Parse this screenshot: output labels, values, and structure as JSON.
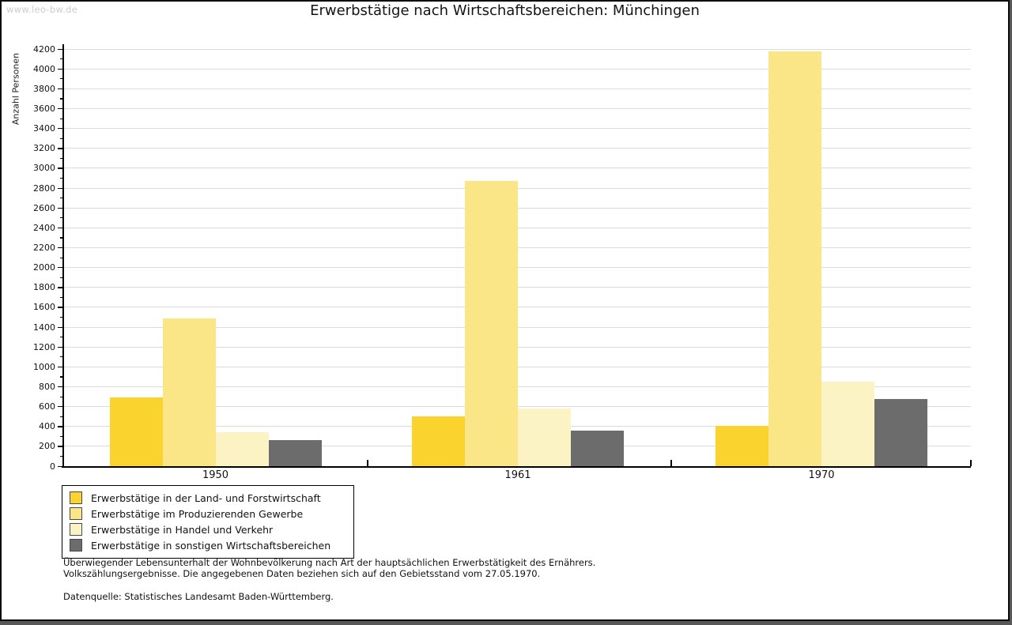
{
  "watermark": "www.leo-bw.de",
  "title": "Erwerbstätige nach Wirtschaftsbereichen: Münchingen",
  "chart_data": {
    "type": "bar",
    "title": "Erwerbstätige nach Wirtschaftsbereichen: Münchingen",
    "xlabel": "",
    "ylabel": "Anzahl Personen",
    "categories": [
      "1950",
      "1961",
      "1970"
    ],
    "series": [
      {
        "name": "Erwerbstätige in der Land- und Forstwirtschaft",
        "color": "#FBD32E",
        "values": [
          695,
          500,
          405
        ]
      },
      {
        "name": "Erwerbstätige im Produzierenden Gewerbe",
        "color": "#FAE687",
        "values": [
          1485,
          2870,
          4175
        ]
      },
      {
        "name": "Erwerbstätige in Handel und Verkehr",
        "color": "#FBF3C4",
        "values": [
          340,
          580,
          855
        ]
      },
      {
        "name": "Erwerbstätige in sonstigen Wirtschaftsbereichen",
        "color": "#6C6C6C",
        "values": [
          260,
          360,
          675
        ]
      }
    ],
    "ylim": [
      0,
      4200
    ],
    "ytick_step": 200,
    "ytick_minor_step": 100,
    "grid": true,
    "gridline_color": "#dbdbdb",
    "legend_position": "bottom-left"
  },
  "footnotes": [
    "Überwiegender Lebensunterhalt der Wohnbevölkerung nach Art der hauptsächlichen Erwerbstätigkeit des Ernährers.",
    "Volkszählungsergebnisse. Die angegebenen Daten beziehen sich auf den Gebietsstand vom 27.05.1970."
  ],
  "source": "Datenquelle: Statistisches Landesamt Baden-Württemberg."
}
